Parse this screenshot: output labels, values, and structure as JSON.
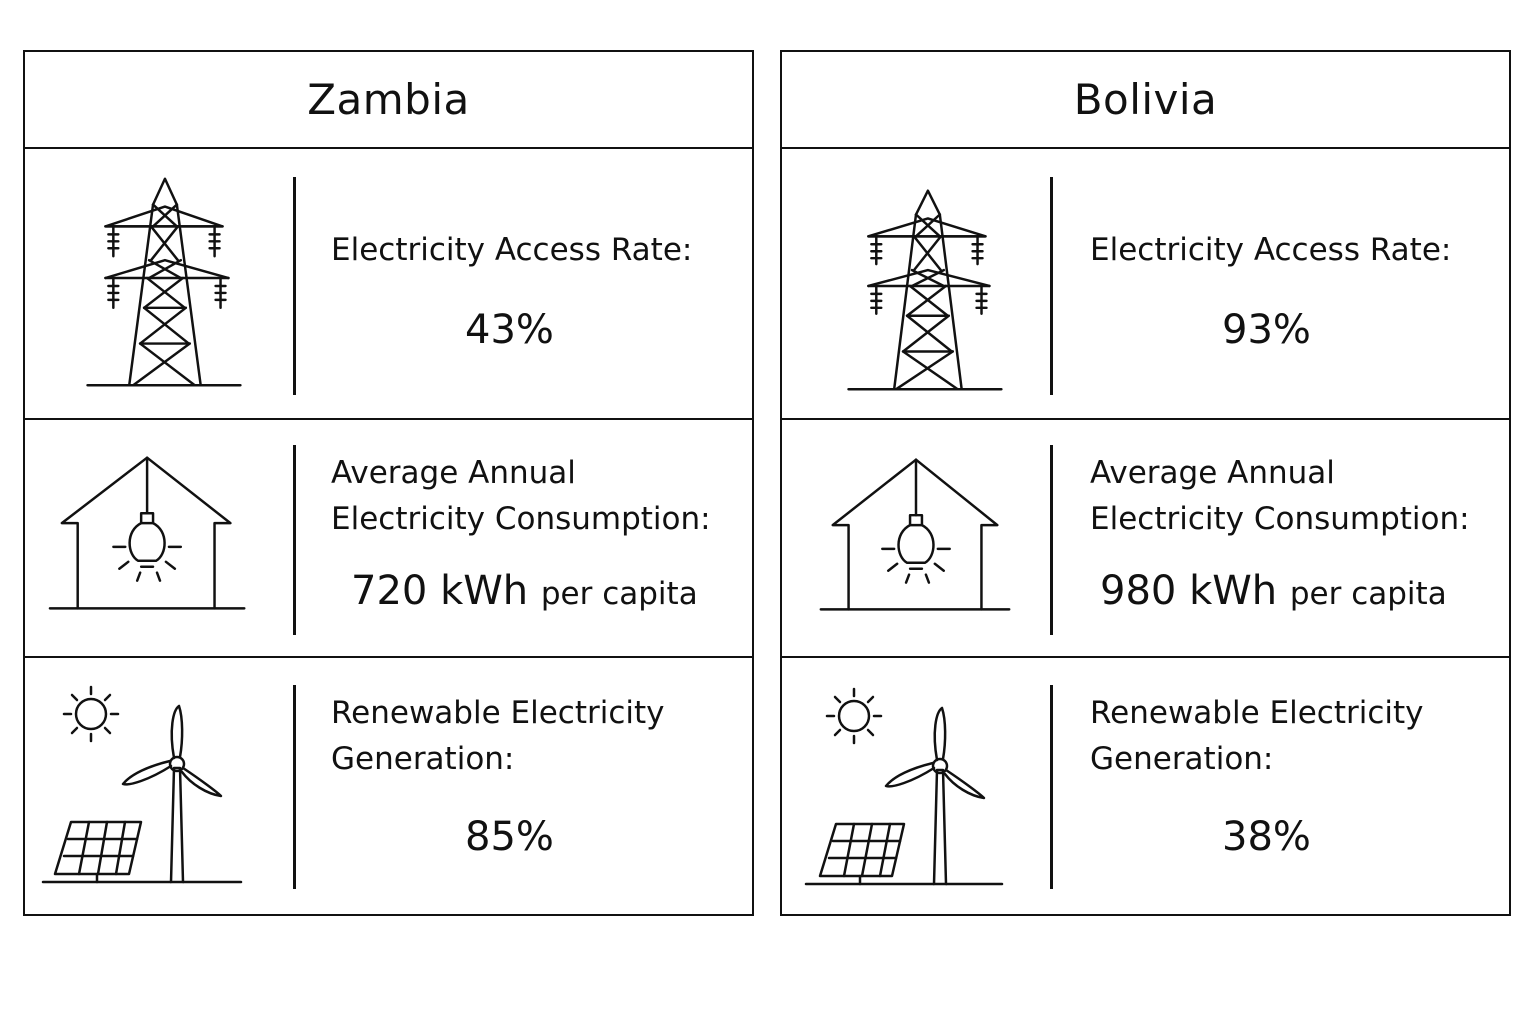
{
  "countries": [
    {
      "name": "Zambia",
      "access_label": "Electricity Access Rate:",
      "access_value": "43%",
      "consumption_label": "Average Annual Electricity Consumption:",
      "consumption_value": "720 kWh",
      "consumption_unit": "per capita",
      "renewable_label": "Renewable Electricity Generation:",
      "renewable_value": "85%"
    },
    {
      "name": "Bolivia",
      "access_label": "Electricity Access Rate:",
      "access_value": "93%",
      "consumption_label": "Average Annual Electricity Consumption:",
      "consumption_value": "980 kWh",
      "consumption_unit": "per capita",
      "renewable_label": "Renewable Electricity Generation:",
      "renewable_value": "38%"
    }
  ],
  "icons": {
    "access": "power-tower-icon",
    "consumption": "house-lightbulb-icon",
    "renewable": "sun-wind-solar-icon"
  },
  "colors": {
    "ink": "#111111",
    "background": "#ffffff"
  }
}
